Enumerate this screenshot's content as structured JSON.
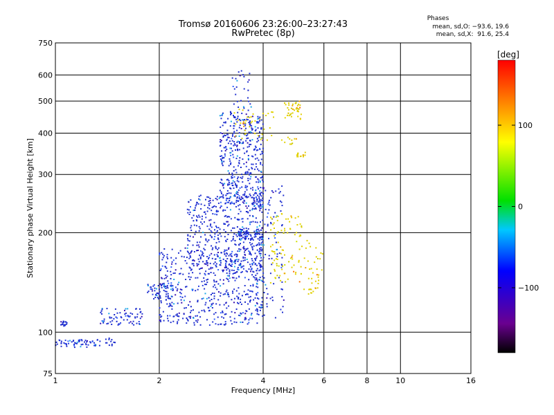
{
  "chart_data": {
    "type": "scatter",
    "title": "Tromsø 20160606 23:26:00–23:27:43",
    "subtitle": "RwPretec (8p)",
    "xlabel": "Frequency [MHz]",
    "ylabel": "Stationary phase Virtual Height [km]",
    "x_scale": "log",
    "y_scale": "log",
    "xlim": [
      1,
      16
    ],
    "ylim": [
      75,
      750
    ],
    "x_ticks": [
      "1",
      "2",
      "4",
      "6",
      "8",
      "10",
      "16"
    ],
    "y_ticks": [
      "75",
      "100",
      "200",
      "300",
      "400",
      "500",
      "600",
      "750"
    ],
    "grid": true,
    "legend": {
      "title": "Phases",
      "line_o": "mean, sd,O: −93.6, 19.6",
      "line_x": "mean, sd,X:  91.6, 25.4"
    },
    "colorbar": {
      "label": "[deg]",
      "range": [
        -180,
        180
      ],
      "ticks": [
        "100",
        "0",
        "−100"
      ],
      "colormap": "rainbow: black → purple → blue → cyan → green → yellow → orange → red"
    },
    "series": [
      {
        "name": "O",
        "color": "#2030d0",
        "clusters": [
          {
            "f_mhz": [
              1.03,
              1.08
            ],
            "h_km": [
              104,
              108
            ],
            "count": 18
          },
          {
            "f_mhz": [
              1.0,
              1.35
            ],
            "h_km": [
              90,
              95
            ],
            "count": 60
          },
          {
            "f_mhz": [
              1.35,
              1.8
            ],
            "h_km": [
              105,
              118
            ],
            "count": 70
          },
          {
            "f_mhz": [
              1.4,
              1.5
            ],
            "h_km": [
              91,
              96
            ],
            "count": 12
          },
          {
            "f_mhz": [
              1.85,
              2.2
            ],
            "h_km": [
              125,
              140
            ],
            "count": 60
          },
          {
            "f_mhz": [
              2.0,
              4.0
            ],
            "h_km": [
              105,
              180
            ],
            "count": 500
          },
          {
            "f_mhz": [
              2.4,
              4.0
            ],
            "h_km": [
              150,
              260
            ],
            "count": 450
          },
          {
            "f_mhz": [
              3.0,
              4.0
            ],
            "h_km": [
              240,
              460
            ],
            "count": 420
          },
          {
            "f_mhz": [
              3.2,
              3.7
            ],
            "h_km": [
              420,
              620
            ],
            "count": 40
          },
          {
            "f_mhz": [
              3.4,
              4.0
            ],
            "h_km": [
              190,
              205
            ],
            "count": 70
          },
          {
            "f_mhz": [
              3.8,
              4.6
            ],
            "h_km": [
              110,
              280
            ],
            "count": 120
          }
        ]
      },
      {
        "name": "X",
        "color": "#e0d000",
        "clusters": [
          {
            "f_mhz": [
              4.2,
              5.2
            ],
            "h_km": [
              140,
              230
            ],
            "count": 90
          },
          {
            "f_mhz": [
              4.6,
              5.2
            ],
            "h_km": [
              440,
              500
            ],
            "count": 40
          },
          {
            "f_mhz": [
              4.5,
              5.0
            ],
            "h_km": [
              370,
              390
            ],
            "count": 10
          },
          {
            "f_mhz": [
              5.0,
              5.3
            ],
            "h_km": [
              335,
              350
            ],
            "count": 14
          },
          {
            "f_mhz": [
              5.2,
              6.0
            ],
            "h_km": [
              130,
              190
            ],
            "count": 40
          },
          {
            "f_mhz": [
              3.3,
              4.3
            ],
            "h_km": [
              380,
              480
            ],
            "count": 40
          }
        ]
      }
    ]
  }
}
